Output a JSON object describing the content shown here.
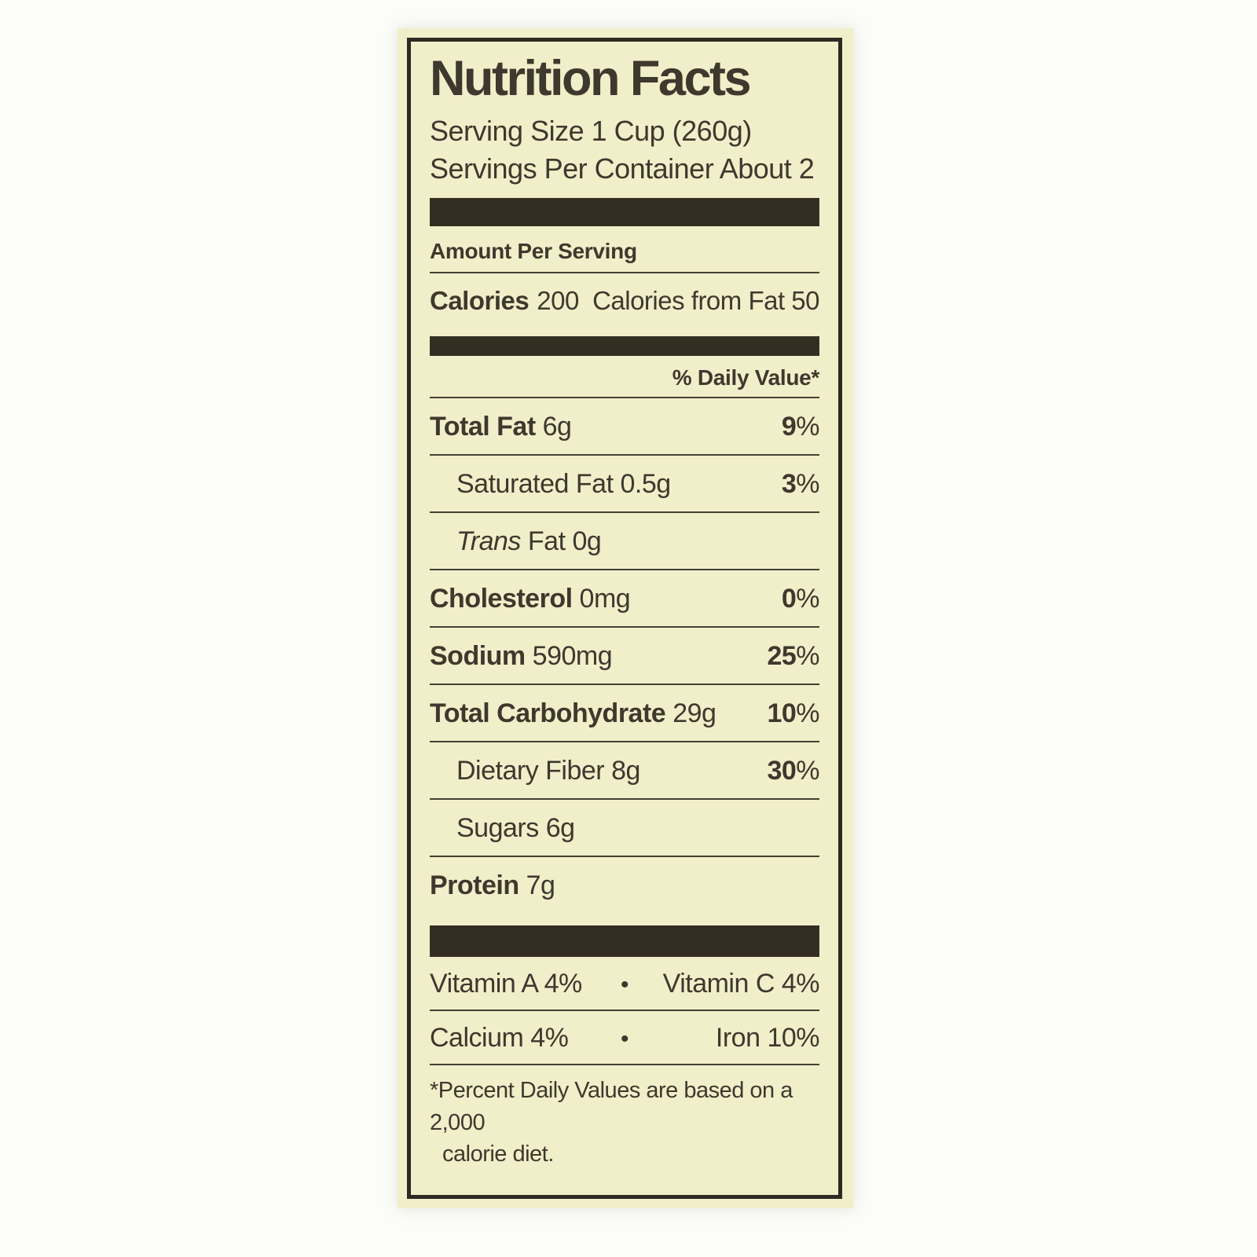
{
  "colors": {
    "paper": "#f1eeca",
    "ink": "#3e382d",
    "bar": "#342e22",
    "page_background": "#fcfcf9"
  },
  "label": {
    "title": "Nutrition Facts",
    "serving_size": "Serving Size 1 Cup (260g)",
    "servings_per_container": "Servings Per Container About 2",
    "amount_per_serving": "Amount Per Serving",
    "calories": {
      "label": "Calories",
      "value": "200",
      "from_fat": "Calories from Fat 50"
    },
    "daily_value_header": "% Daily Value*",
    "nutrients": [
      {
        "name": "Total Fat",
        "amount": "6g",
        "dv_value": "9",
        "dv_unit": "%"
      },
      {
        "name": "Saturated Fat",
        "amount": "0.5g",
        "dv_value": "3",
        "dv_unit": "%"
      },
      {
        "name": "Trans",
        "amount": "Fat 0g"
      },
      {
        "name": "Cholesterol",
        "amount": "0mg",
        "dv_value": "0",
        "dv_unit": "%"
      },
      {
        "name": "Sodium",
        "amount": "590mg",
        "dv_value": "25",
        "dv_unit": "%"
      },
      {
        "name": "Total Carbohydrate",
        "amount": "29g",
        "dv_value": "10",
        "dv_unit": "%"
      },
      {
        "name": "Dietary Fiber",
        "amount": "8g",
        "dv_value": "30",
        "dv_unit": "%"
      },
      {
        "name": "Sugars",
        "amount": "6g"
      },
      {
        "name": "Protein",
        "amount": "7g"
      }
    ],
    "vitamins": {
      "row1": {
        "left": "Vitamin A 4%",
        "bullet": "•",
        "right": "Vitamin C 4%"
      },
      "row2": {
        "left": "Calcium 4%",
        "bullet": "•",
        "right": "Iron 10%"
      }
    },
    "footnote": {
      "line1": "*Percent Daily Values are based on a 2,000",
      "line2": "calorie diet."
    }
  }
}
